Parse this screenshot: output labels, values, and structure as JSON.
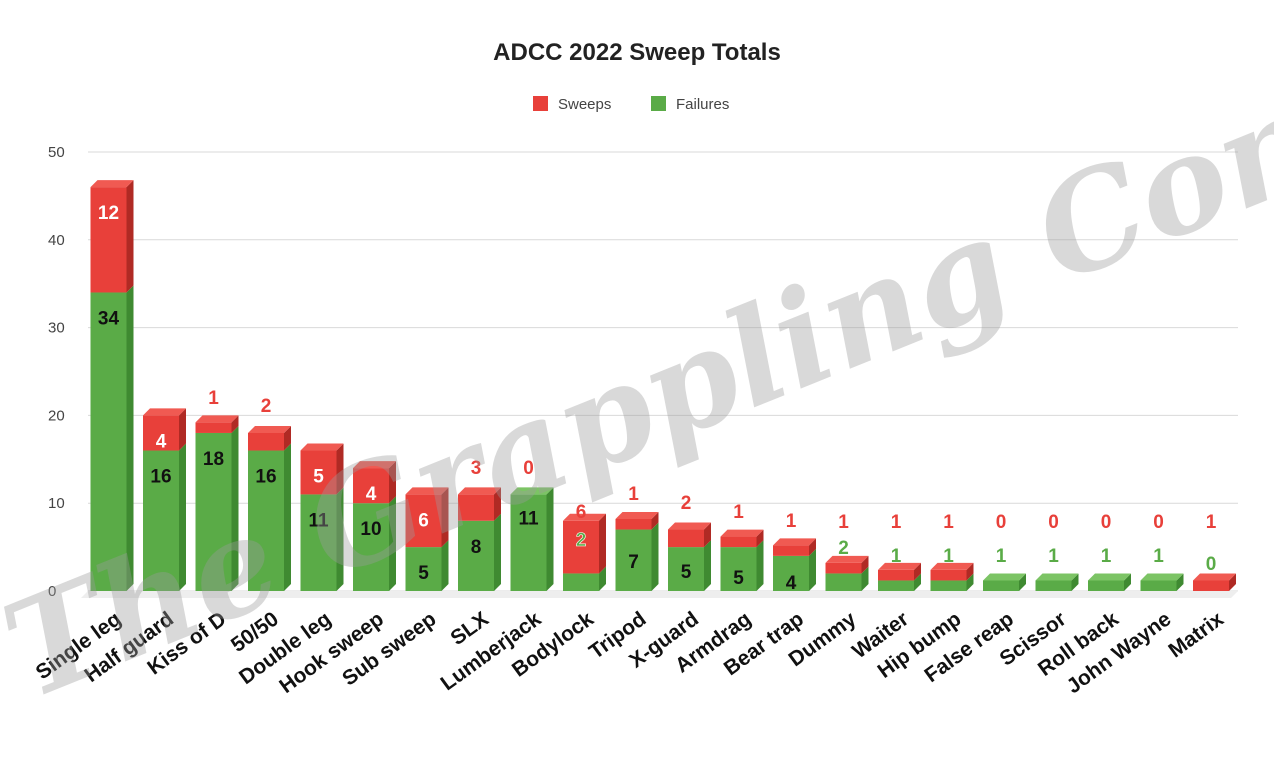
{
  "colors": {
    "sweeps": "#e8403a",
    "sweeps_top": "#f05a52",
    "sweeps_side": "#b02a24",
    "failures": "#5aab47",
    "failures_top": "#7cc465",
    "failures_side": "#3f8a31",
    "grid": "#d9d9d9"
  },
  "watermark": "The Grappling Conjecture",
  "chart_data": {
    "type": "bar",
    "stacked": true,
    "title": "ADCC 2022 Sweep Totals",
    "legend_position": "top-center",
    "grid": true,
    "ylim": [
      0,
      50
    ],
    "yticks": [
      0,
      10,
      20,
      30,
      40,
      50
    ],
    "categories": [
      "Single leg",
      "Half guard",
      "Kiss of D",
      "50/50",
      "Double leg",
      "Hook sweep",
      "Sub sweep",
      "SLX",
      "Lumberjack",
      "Bodylock",
      "Tripod",
      "X-guard",
      "Armdrag",
      "Bear trap",
      "Dummy",
      "Waiter",
      "Hip bump",
      "False reap",
      "Scissor",
      "Roll back",
      "John Wayne",
      "Matrix"
    ],
    "series": [
      {
        "name": "Failures",
        "values": [
          34,
          16,
          18,
          16,
          11,
          10,
          5,
          8,
          11,
          2,
          7,
          5,
          5,
          4,
          2,
          1,
          1,
          1,
          1,
          1,
          1,
          0
        ]
      },
      {
        "name": "Sweeps",
        "values": [
          12,
          4,
          1,
          2,
          5,
          4,
          6,
          3,
          0,
          6,
          1,
          2,
          1,
          1,
          1,
          1,
          1,
          0,
          0,
          0,
          0,
          1
        ]
      }
    ]
  }
}
